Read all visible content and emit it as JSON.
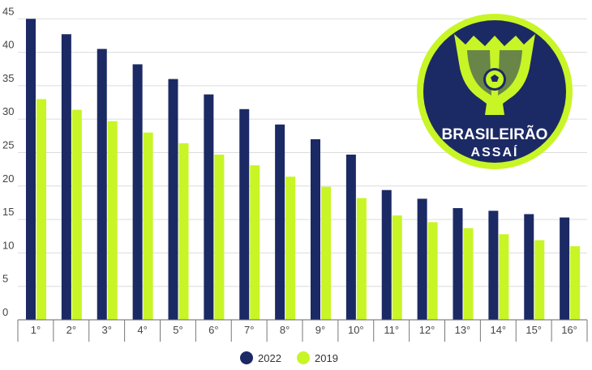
{
  "chart_data": {
    "type": "bar",
    "categories": [
      "1°",
      "2°",
      "3°",
      "4°",
      "5°",
      "6°",
      "7°",
      "8°",
      "9°",
      "10°",
      "11°",
      "12°",
      "13°",
      "14°",
      "15°",
      "16°"
    ],
    "series": [
      {
        "name": "2022",
        "color": "#1b2a64",
        "values": [
          45,
          42.7,
          40.5,
          38.2,
          36,
          33.7,
          31.5,
          29.2,
          27,
          24.7,
          19.4,
          18.1,
          16.7,
          16.3,
          15.8,
          15.3
        ]
      },
      {
        "name": "2019",
        "color": "#c8f526",
        "values": [
          33,
          31.4,
          29.7,
          28,
          26.4,
          24.7,
          23.1,
          21.4,
          19.9,
          18.2,
          15.6,
          14.6,
          13.7,
          12.8,
          11.9,
          11
        ]
      }
    ],
    "yticks": [
      "0",
      "5",
      "10",
      "15",
      "20",
      "25",
      "30",
      "35",
      "40",
      "45"
    ],
    "ylim": [
      0,
      46
    ],
    "grid": true,
    "legend": "bottom-center",
    "title": "",
    "xlabel": "",
    "ylabel": ""
  },
  "logo": {
    "line1": "BRASILEIRÃO",
    "line2": "ASSAÍ",
    "colors": {
      "ring": "#c8f526",
      "fill": "#1b2a64",
      "ball": "#c8f526"
    }
  }
}
